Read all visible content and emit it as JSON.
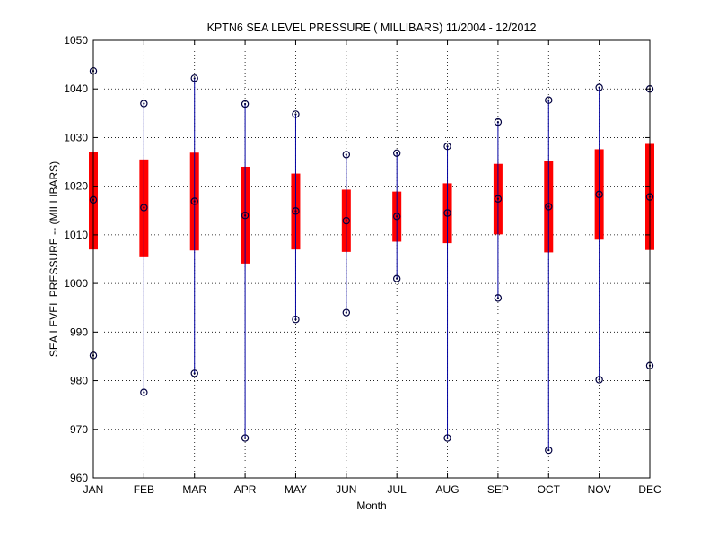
{
  "chart_data": {
    "type": "boxplot",
    "title": "KPTN6  SEA LEVEL PRESSURE ( MILLIBARS) 11/2004 - 12/2012",
    "xlabel": "Month",
    "ylabel": "SEA LEVEL PRESSURE -- (MILLIBARS)",
    "ylim": [
      960,
      1050
    ],
    "yticks": [
      960,
      970,
      980,
      990,
      1000,
      1010,
      1020,
      1030,
      1040,
      1050
    ],
    "grid": true,
    "categories": [
      "JAN",
      "FEB",
      "MAR",
      "APR",
      "MAY",
      "JUN",
      "JUL",
      "AUG",
      "SEP",
      "OCT",
      "NOV",
      "DEC"
    ],
    "series": [
      {
        "month": "JAN",
        "min": 985.2,
        "q1": 1007.0,
        "mean": 1017.2,
        "q3": 1027.0,
        "max": 1043.7
      },
      {
        "month": "FEB",
        "min": 977.6,
        "q1": 1005.4,
        "mean": 1015.6,
        "q3": 1025.5,
        "max": 1037.0
      },
      {
        "month": "MAR",
        "min": 981.5,
        "q1": 1006.8,
        "mean": 1016.9,
        "q3": 1026.9,
        "max": 1042.2
      },
      {
        "month": "APR",
        "min": 968.2,
        "q1": 1004.1,
        "mean": 1014.0,
        "q3": 1024.0,
        "max": 1036.9
      },
      {
        "month": "MAY",
        "min": 992.6,
        "q1": 1007.0,
        "mean": 1014.9,
        "q3": 1022.6,
        "max": 1034.8
      },
      {
        "month": "JUN",
        "min": 994.0,
        "q1": 1006.5,
        "mean": 1012.9,
        "q3": 1019.3,
        "max": 1026.5
      },
      {
        "month": "JUL",
        "min": 1001.0,
        "q1": 1008.6,
        "mean": 1013.8,
        "q3": 1018.9,
        "max": 1026.8
      },
      {
        "month": "AUG",
        "min": 968.2,
        "q1": 1008.3,
        "mean": 1014.5,
        "q3": 1020.6,
        "max": 1028.2
      },
      {
        "month": "SEP",
        "min": 997.0,
        "q1": 1010.1,
        "mean": 1017.4,
        "q3": 1024.6,
        "max": 1033.2
      },
      {
        "month": "OCT",
        "min": 965.7,
        "q1": 1006.4,
        "mean": 1015.8,
        "q3": 1025.2,
        "max": 1037.7
      },
      {
        "month": "NOV",
        "min": 980.2,
        "q1": 1009.0,
        "mean": 1018.3,
        "q3": 1027.6,
        "max": 1040.3
      },
      {
        "month": "DEC",
        "min": 983.1,
        "q1": 1006.9,
        "mean": 1017.8,
        "q3": 1028.7,
        "max": 1040.0
      }
    ],
    "colors": {
      "whisker": "#0000a0",
      "box": "#ff0000",
      "marker": "#000040",
      "grid": "#000000",
      "axis": "#000000"
    }
  }
}
